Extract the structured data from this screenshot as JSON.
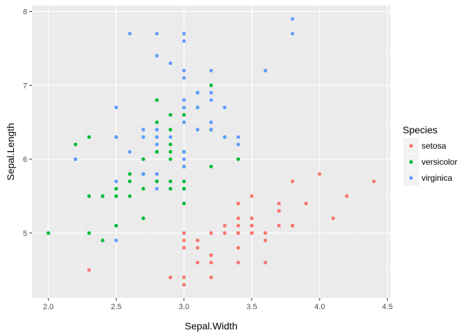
{
  "chart_data": {
    "type": "scatter",
    "xlabel": "Sepal.Width",
    "ylabel": "Sepal.Length",
    "xlim": [
      1.88,
      4.52
    ],
    "ylim": [
      4.12,
      8.08
    ],
    "xticks": [
      "2.0",
      "2.5",
      "3.0",
      "3.5",
      "4.0",
      "4.5"
    ],
    "xtick_values": [
      2.0,
      2.5,
      3.0,
      3.5,
      4.0,
      4.5
    ],
    "yticks": [
      "5",
      "6",
      "7",
      "8"
    ],
    "ytick_values": [
      5,
      6,
      7,
      8
    ],
    "grid": true,
    "legend": {
      "title": "Species",
      "position": "right"
    },
    "series": [
      {
        "name": "setosa",
        "color": "#F8766D",
        "points": [
          [
            3.5,
            5.1
          ],
          [
            3.0,
            4.9
          ],
          [
            3.2,
            4.7
          ],
          [
            3.1,
            4.6
          ],
          [
            3.6,
            5.0
          ],
          [
            3.9,
            5.4
          ],
          [
            3.4,
            4.6
          ],
          [
            3.4,
            5.0
          ],
          [
            2.9,
            4.4
          ],
          [
            3.1,
            4.9
          ],
          [
            3.7,
            5.4
          ],
          [
            3.4,
            4.8
          ],
          [
            3.0,
            4.8
          ],
          [
            3.0,
            4.3
          ],
          [
            4.0,
            5.8
          ],
          [
            4.4,
            5.7
          ],
          [
            3.9,
            5.4
          ],
          [
            3.5,
            5.1
          ],
          [
            3.8,
            5.7
          ],
          [
            3.8,
            5.1
          ],
          [
            3.4,
            5.4
          ],
          [
            3.7,
            5.1
          ],
          [
            3.6,
            4.6
          ],
          [
            3.3,
            5.1
          ],
          [
            3.4,
            4.8
          ],
          [
            3.0,
            5.0
          ],
          [
            3.4,
            5.0
          ],
          [
            3.5,
            5.2
          ],
          [
            3.4,
            5.2
          ],
          [
            3.2,
            4.7
          ],
          [
            3.1,
            4.8
          ],
          [
            3.4,
            5.4
          ],
          [
            4.1,
            5.2
          ],
          [
            4.2,
            5.5
          ],
          [
            3.1,
            4.9
          ],
          [
            3.2,
            5.0
          ],
          [
            3.5,
            5.5
          ],
          [
            3.6,
            4.9
          ],
          [
            3.0,
            4.4
          ],
          [
            3.4,
            5.1
          ],
          [
            3.5,
            5.0
          ],
          [
            2.3,
            4.5
          ],
          [
            3.2,
            4.4
          ],
          [
            3.5,
            5.0
          ],
          [
            3.8,
            5.1
          ],
          [
            3.0,
            4.8
          ],
          [
            3.8,
            5.1
          ],
          [
            3.2,
            4.6
          ],
          [
            3.7,
            5.3
          ],
          [
            3.3,
            5.0
          ]
        ]
      },
      {
        "name": "versicolor",
        "color": "#00BA38",
        "points": [
          [
            3.2,
            7.0
          ],
          [
            3.2,
            6.4
          ],
          [
            3.1,
            6.9
          ],
          [
            2.3,
            5.5
          ],
          [
            2.8,
            6.5
          ],
          [
            2.8,
            5.7
          ],
          [
            3.3,
            6.3
          ],
          [
            2.4,
            4.9
          ],
          [
            2.9,
            6.6
          ],
          [
            2.7,
            5.2
          ],
          [
            2.0,
            5.0
          ],
          [
            3.0,
            5.9
          ],
          [
            2.2,
            6.0
          ],
          [
            2.9,
            6.1
          ],
          [
            2.9,
            5.6
          ],
          [
            3.1,
            6.7
          ],
          [
            3.0,
            5.6
          ],
          [
            2.7,
            5.8
          ],
          [
            2.2,
            6.2
          ],
          [
            2.5,
            5.6
          ],
          [
            3.2,
            5.9
          ],
          [
            2.8,
            6.1
          ],
          [
            2.5,
            6.3
          ],
          [
            2.8,
            6.1
          ],
          [
            2.9,
            6.4
          ],
          [
            3.0,
            6.6
          ],
          [
            2.8,
            6.8
          ],
          [
            3.0,
            6.7
          ],
          [
            2.9,
            6.0
          ],
          [
            2.6,
            5.7
          ],
          [
            2.4,
            5.5
          ],
          [
            2.4,
            5.5
          ],
          [
            2.7,
            5.8
          ],
          [
            2.7,
            6.0
          ],
          [
            3.0,
            5.4
          ],
          [
            3.4,
            6.0
          ],
          [
            3.1,
            6.7
          ],
          [
            2.3,
            6.3
          ],
          [
            3.0,
            5.6
          ],
          [
            2.5,
            5.5
          ],
          [
            2.6,
            5.5
          ],
          [
            3.0,
            6.1
          ],
          [
            2.6,
            5.8
          ],
          [
            2.3,
            5.0
          ],
          [
            2.7,
            5.6
          ],
          [
            3.0,
            5.7
          ],
          [
            2.9,
            5.7
          ],
          [
            2.9,
            6.2
          ],
          [
            2.5,
            5.1
          ],
          [
            2.8,
            5.7
          ]
        ]
      },
      {
        "name": "virginica",
        "color": "#619CFF",
        "points": [
          [
            3.3,
            6.3
          ],
          [
            2.7,
            5.8
          ],
          [
            3.0,
            7.1
          ],
          [
            2.9,
            6.3
          ],
          [
            3.0,
            6.5
          ],
          [
            3.0,
            7.6
          ],
          [
            2.5,
            4.9
          ],
          [
            2.9,
            7.3
          ],
          [
            2.5,
            6.7
          ],
          [
            3.6,
            7.2
          ],
          [
            3.2,
            6.5
          ],
          [
            2.7,
            6.4
          ],
          [
            3.0,
            6.8
          ],
          [
            2.5,
            5.7
          ],
          [
            2.8,
            5.8
          ],
          [
            3.2,
            6.4
          ],
          [
            3.0,
            6.5
          ],
          [
            3.8,
            7.7
          ],
          [
            2.6,
            7.7
          ],
          [
            2.2,
            6.0
          ],
          [
            3.2,
            6.9
          ],
          [
            2.8,
            5.6
          ],
          [
            2.8,
            7.7
          ],
          [
            2.7,
            6.3
          ],
          [
            3.3,
            6.7
          ],
          [
            3.2,
            7.2
          ],
          [
            2.8,
            6.2
          ],
          [
            3.0,
            6.1
          ],
          [
            2.8,
            6.4
          ],
          [
            3.0,
            7.2
          ],
          [
            2.8,
            7.4
          ],
          [
            3.8,
            7.9
          ],
          [
            2.8,
            6.4
          ],
          [
            2.8,
            6.3
          ],
          [
            2.6,
            6.1
          ],
          [
            3.0,
            7.7
          ],
          [
            3.4,
            6.3
          ],
          [
            3.1,
            6.4
          ],
          [
            3.0,
            6.0
          ],
          [
            3.1,
            6.9
          ],
          [
            3.1,
            6.7
          ],
          [
            3.1,
            6.9
          ],
          [
            2.7,
            5.8
          ],
          [
            3.2,
            6.8
          ],
          [
            3.3,
            6.7
          ],
          [
            3.0,
            6.7
          ],
          [
            2.5,
            6.3
          ],
          [
            3.0,
            6.5
          ],
          [
            3.4,
            6.2
          ],
          [
            3.0,
            5.9
          ]
        ]
      }
    ]
  }
}
